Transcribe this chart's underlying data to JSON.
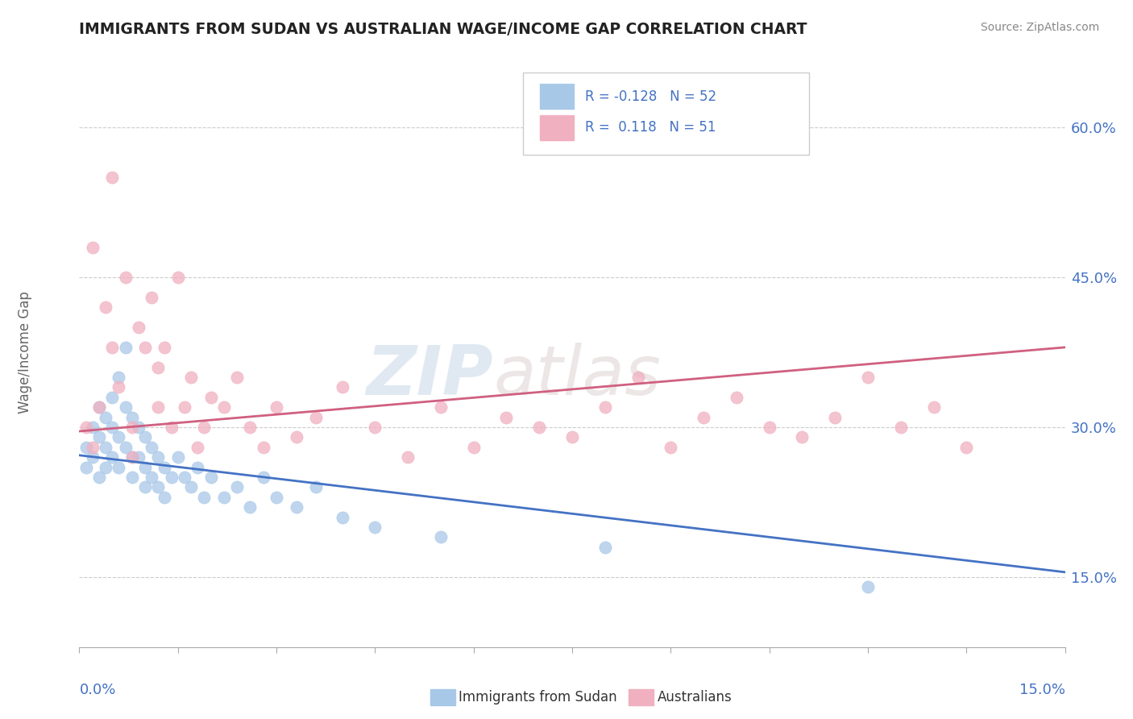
{
  "title": "IMMIGRANTS FROM SUDAN VS AUSTRALIAN WAGE/INCOME GAP CORRELATION CHART",
  "source": "Source: ZipAtlas.com",
  "ylabel": "Wage/Income Gap",
  "yaxis_ticks": [
    "15.0%",
    "30.0%",
    "45.0%",
    "60.0%"
  ],
  "yaxis_tick_values": [
    0.15,
    0.3,
    0.45,
    0.6
  ],
  "xlim": [
    0.0,
    0.15
  ],
  "ylim": [
    0.08,
    0.67
  ],
  "legend_R1": "-0.128",
  "legend_N1": "52",
  "legend_R2": "0.118",
  "legend_N2": "51",
  "blue_color": "#A8C8E8",
  "pink_color": "#F0B0C0",
  "trend_blue": "#4472C4",
  "trend_pink": "#D06080",
  "watermark_zip": "ZIP",
  "watermark_atlas": "atlas",
  "blue_trend_y0": 0.272,
  "blue_trend_y1": 0.155,
  "pink_trend_y0": 0.296,
  "pink_trend_y1": 0.38,
  "blue_scatter_x": [
    0.001,
    0.001,
    0.002,
    0.002,
    0.003,
    0.003,
    0.003,
    0.004,
    0.004,
    0.004,
    0.005,
    0.005,
    0.005,
    0.006,
    0.006,
    0.006,
    0.007,
    0.007,
    0.007,
    0.008,
    0.008,
    0.008,
    0.009,
    0.009,
    0.01,
    0.01,
    0.01,
    0.011,
    0.011,
    0.012,
    0.012,
    0.013,
    0.013,
    0.014,
    0.015,
    0.016,
    0.017,
    0.018,
    0.019,
    0.02,
    0.022,
    0.024,
    0.026,
    0.028,
    0.03,
    0.033,
    0.036,
    0.04,
    0.045,
    0.055,
    0.08,
    0.12
  ],
  "blue_scatter_y": [
    0.28,
    0.26,
    0.3,
    0.27,
    0.32,
    0.29,
    0.25,
    0.31,
    0.28,
    0.26,
    0.33,
    0.3,
    0.27,
    0.35,
    0.29,
    0.26,
    0.38,
    0.32,
    0.28,
    0.31,
    0.27,
    0.25,
    0.3,
    0.27,
    0.29,
    0.26,
    0.24,
    0.28,
    0.25,
    0.27,
    0.24,
    0.26,
    0.23,
    0.25,
    0.27,
    0.25,
    0.24,
    0.26,
    0.23,
    0.25,
    0.23,
    0.24,
    0.22,
    0.25,
    0.23,
    0.22,
    0.24,
    0.21,
    0.2,
    0.19,
    0.18,
    0.14
  ],
  "pink_scatter_x": [
    0.001,
    0.002,
    0.002,
    0.003,
    0.004,
    0.005,
    0.005,
    0.006,
    0.007,
    0.008,
    0.008,
    0.009,
    0.01,
    0.011,
    0.012,
    0.012,
    0.013,
    0.014,
    0.015,
    0.016,
    0.017,
    0.018,
    0.019,
    0.02,
    0.022,
    0.024,
    0.026,
    0.028,
    0.03,
    0.033,
    0.036,
    0.04,
    0.045,
    0.05,
    0.055,
    0.06,
    0.065,
    0.07,
    0.075,
    0.08,
    0.085,
    0.09,
    0.095,
    0.1,
    0.105,
    0.11,
    0.115,
    0.12,
    0.125,
    0.13,
    0.135
  ],
  "pink_scatter_y": [
    0.3,
    0.28,
    0.48,
    0.32,
    0.42,
    0.55,
    0.38,
    0.34,
    0.45,
    0.3,
    0.27,
    0.4,
    0.38,
    0.43,
    0.36,
    0.32,
    0.38,
    0.3,
    0.45,
    0.32,
    0.35,
    0.28,
    0.3,
    0.33,
    0.32,
    0.35,
    0.3,
    0.28,
    0.32,
    0.29,
    0.31,
    0.34,
    0.3,
    0.27,
    0.32,
    0.28,
    0.31,
    0.3,
    0.29,
    0.32,
    0.35,
    0.28,
    0.31,
    0.33,
    0.3,
    0.29,
    0.31,
    0.35,
    0.3,
    0.32,
    0.28
  ]
}
